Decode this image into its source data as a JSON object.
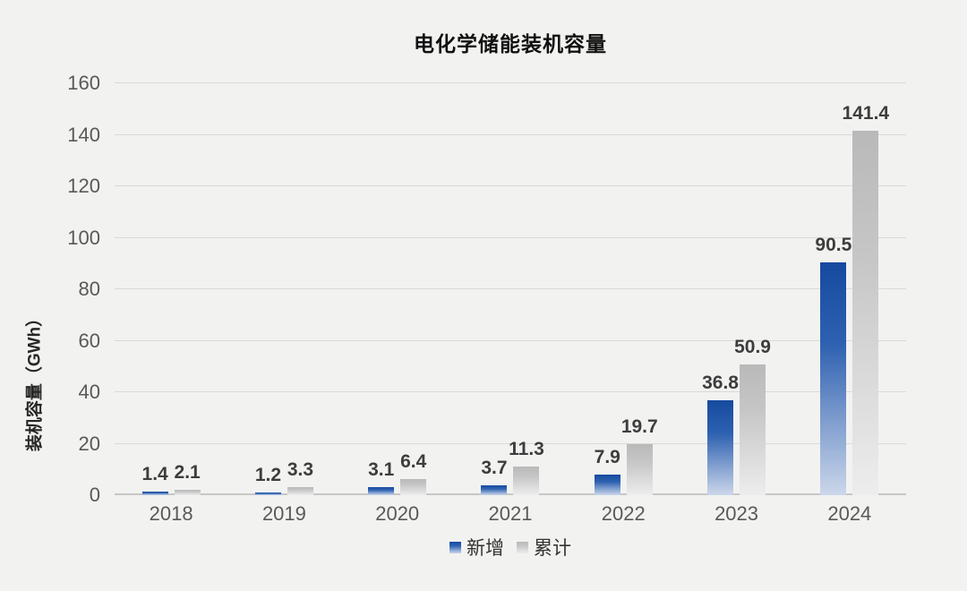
{
  "title": "电化学储能装机容量",
  "y_axis": {
    "label": "装机容量（GWh）",
    "min": 0,
    "max": 160,
    "step": 20
  },
  "colors": {
    "background": "#f2f2f1",
    "new_top": "#164a9f",
    "new_mid": "#2e61b1",
    "new_bottom": "#ccd7ea",
    "cumulative_top": "#b9b9b9",
    "cumulative_mid": "#c6c6c6",
    "cumulative_bottom": "#ededed",
    "grid": "#d9d9d8",
    "axis": "#c7c7c5",
    "tick_text": "#595959",
    "value_text": "#3d3d3d"
  },
  "chart_data": {
    "type": "bar",
    "title": "电化学储能装机容量",
    "categories": [
      "2018",
      "2019",
      "2020",
      "2021",
      "2022",
      "2023",
      "2024"
    ],
    "series": [
      {
        "key": "new",
        "name": "新增",
        "values": [
          1.4,
          1.2,
          3.1,
          3.7,
          7.9,
          36.8,
          90.5
        ]
      },
      {
        "key": "cumulative",
        "name": "累计",
        "values": [
          2.1,
          3.3,
          6.4,
          11.3,
          19.7,
          50.9,
          141.4
        ]
      }
    ],
    "xlabel": "",
    "ylabel": "装机容量（GWh）",
    "ylim": [
      0,
      160
    ],
    "ytick_step": 20,
    "grid": true,
    "legend_position": "bottom",
    "value_labels": true
  }
}
